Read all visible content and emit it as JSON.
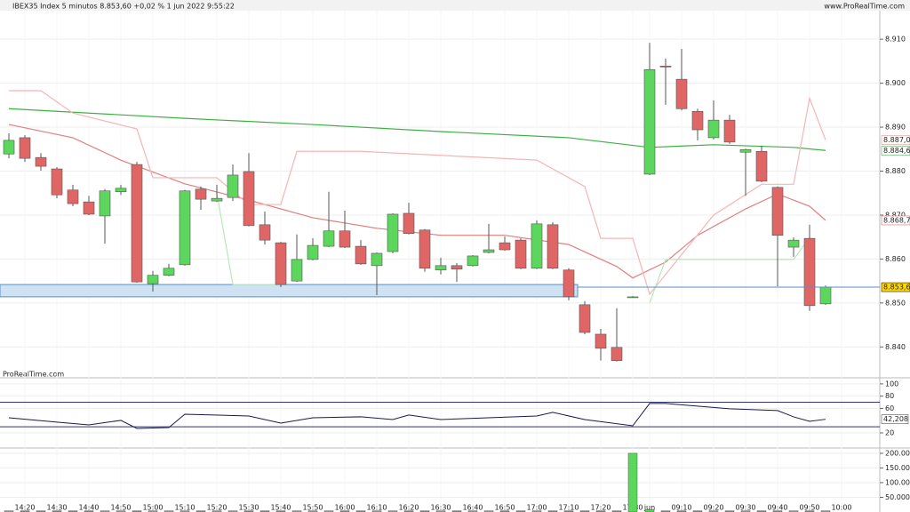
{
  "chart_data": [
    {
      "type": "candlestick",
      "title": "IBEX35 Index 5 minutos 8.853,60 +0,02 % 1 jun 2022 9:55:22",
      "source": "www.ProRealTime.com",
      "watermark": "ProRealTime.com",
      "open": [
        8883.9,
        8887.6,
        8883.1,
        8880.5,
        8875.7,
        8873.0,
        8869.8,
        8875.3,
        8881.5,
        8854.4,
        8856.3,
        8858.7,
        8875.9,
        8873.2,
        8874.0,
        8879.9,
        8867.8,
        8863.7,
        8855.0,
        8859.9,
        8862.9,
        8866.4,
        8862.9,
        8858.5,
        8861.7,
        8870.4,
        8866.6,
        8857.5,
        8858.5,
        8858.5,
        8861.5,
        8863.7,
        8864.3,
        8857.9,
        8867.8,
        8857.5,
        8849.6,
        8842.9,
        8839.9,
        8851.4,
        8879.3,
        8903.9,
        8900.9,
        8893.6,
        8887.6,
        8891.6,
        8884.3,
        8884.5,
        8876.3,
        8862.7,
        8864.7,
        8849.8
      ],
      "high": [
        8888.6,
        8888.2,
        8884.1,
        8880.9,
        8876.9,
        8874.4,
        8875.9,
        8876.9,
        8882.1,
        8857.3,
        8858.9,
        8875.7,
        8876.5,
        8876.9,
        8881.5,
        8884.1,
        8870.8,
        8863.9,
        8865.6,
        8864.7,
        8875.3,
        8871.0,
        8864.3,
        8861.5,
        8870.4,
        8872.8,
        8866.8,
        8860.3,
        8859.1,
        8860.9,
        8868.0,
        8865.1,
        8864.7,
        8868.8,
        8868.4,
        8857.9,
        8850.4,
        8844.1,
        8848.8,
        8851.6,
        8909.2,
        8905.6,
        8907.8,
        8894.2,
        8896.1,
        8892.8,
        8885.1,
        8885.8,
        8876.5,
        8864.9,
        8867.8,
        8854.0
      ],
      "low": [
        8882.9,
        8882.1,
        8880.1,
        8873.8,
        8872.0,
        8870.0,
        8863.5,
        8874.6,
        8854.6,
        8852.6,
        8856.1,
        8858.5,
        8871.2,
        8873.0,
        8873.2,
        8867.4,
        8863.3,
        8853.6,
        8854.8,
        8859.7,
        8862.7,
        8862.5,
        8858.7,
        8851.8,
        8861.3,
        8865.6,
        8857.1,
        8856.5,
        8854.8,
        8858.3,
        8861.3,
        8861.9,
        8857.7,
        8857.7,
        8857.7,
        8850.6,
        8842.9,
        8836.9,
        8836.7,
        8851.2,
        8879.1,
        8895.1,
        8893.8,
        8887.0,
        8887.2,
        8886.2,
        8874.4,
        8877.5,
        8853.8,
        8860.5,
        8848.2,
        8849.6
      ],
      "close": [
        8887.0,
        8882.9,
        8881.1,
        8874.6,
        8872.6,
        8870.2,
        8875.5,
        8876.1,
        8854.8,
        8856.3,
        8857.9,
        8875.5,
        8873.6,
        8873.8,
        8879.1,
        8867.6,
        8864.3,
        8854.2,
        8859.9,
        8863.1,
        8866.4,
        8862.7,
        8858.9,
        8861.3,
        8870.2,
        8865.8,
        8857.9,
        8858.5,
        8857.7,
        8860.7,
        8862.1,
        8862.1,
        8857.9,
        8868.0,
        8857.9,
        8851.4,
        8843.3,
        8839.7,
        8836.9,
        8851.4,
        8903.1,
        8903.7,
        8894.2,
        8889.4,
        8891.6,
        8886.6,
        8884.9,
        8877.7,
        8865.4,
        8864.3,
        8849.4,
        8853.6
      ],
      "up_color": "#5cd65c",
      "down_color": "#e06666",
      "overlays": [
        {
          "color": "#3cb043",
          "x": [
            0,
            3,
            11,
            19,
            27,
            35,
            40,
            44,
            49,
            51
          ],
          "values": [
            8894.2,
            8893.6,
            8892.0,
            8890.6,
            8889.0,
            8887.6,
            8885.4,
            8886.0,
            8885.4,
            8884.7
          ]
        },
        {
          "color": "#e07f7f",
          "x": [
            0,
            4,
            7,
            11,
            15,
            19,
            23,
            27,
            31,
            35,
            38,
            39,
            41,
            43,
            46,
            48,
            50,
            51
          ],
          "values": [
            8890.6,
            8887.6,
            8882.5,
            8877.1,
            8873.4,
            8869.4,
            8867.0,
            8865.4,
            8865.4,
            8863.3,
            8858.3,
            8855.7,
            8859.3,
            8865.4,
            8871.4,
            8874.8,
            8872.0,
            8868.8
          ]
        },
        {
          "color": "#f5b5b5",
          "x": [
            0,
            2,
            4,
            8,
            9,
            13,
            15,
            17,
            18,
            22,
            33,
            36,
            37,
            39,
            40,
            44,
            47,
            49,
            50,
            51
          ],
          "values": [
            8898.3,
            8898.3,
            8893.2,
            8889.6,
            8878.5,
            8878.5,
            8872.4,
            8872.4,
            8884.5,
            8884.5,
            8882.5,
            8876.5,
            8864.7,
            8864.7,
            8852.0,
            8870.0,
            8877.0,
            8877.0,
            8896.6,
            8887.1
          ]
        },
        {
          "color": "#b8e8b8",
          "x": [
            13,
            14,
            17,
            18,
            40,
            41,
            49,
            50
          ],
          "values": [
            8875.0,
            8854.2,
            8854.2,
            null,
            8850.0,
            8859.9,
            8859.9,
            8864.9
          ]
        }
      ],
      "zone": [
        8851.4,
        8854.2
      ],
      "price_labels": [
        {
          "value": 8887.05,
          "label": "8.887,05",
          "color": "#e08080"
        },
        {
          "value": 8884.64,
          "label": "8.884,64",
          "color": "#2e9e3e"
        },
        {
          "value": 8868.78,
          "label": "8.868,78",
          "color": "#d05050"
        },
        {
          "value": 8853.6,
          "label": "8.853,60",
          "color": "#000000"
        }
      ],
      "ylim": [
        8834.4,
        8916.5
      ],
      "yticks": [
        {
          "value": 8840,
          "label": "8.840"
        },
        {
          "value": 8850,
          "label": "8.850"
        },
        {
          "value": 8860,
          "label": "8.860"
        },
        {
          "value": 8870,
          "label": "8.870"
        },
        {
          "value": 8880,
          "label": "8.880"
        },
        {
          "value": 8890,
          "label": "8.890"
        },
        {
          "value": 8900,
          "label": "8.900"
        },
        {
          "value": 8910,
          "label": "8.910"
        }
      ],
      "xticks": [
        {
          "value": 1,
          "label": "14:20"
        },
        {
          "value": 3,
          "label": "14:30"
        },
        {
          "value": 5,
          "label": "14:40"
        },
        {
          "value": 7,
          "label": "14:50"
        },
        {
          "value": 9,
          "label": "15:00"
        },
        {
          "value": 11,
          "label": "15:10"
        },
        {
          "value": 13,
          "label": "15:20"
        },
        {
          "value": 15,
          "label": "15:30"
        },
        {
          "value": 17,
          "label": "15:40"
        },
        {
          "value": 19,
          "label": "15:50"
        },
        {
          "value": 21,
          "label": "16:00"
        },
        {
          "value": 23,
          "label": "16:10"
        },
        {
          "value": 25,
          "label": "16:20"
        },
        {
          "value": 27,
          "label": "16:30"
        },
        {
          "value": 29,
          "label": "16:40"
        },
        {
          "value": 31,
          "label": "16:50"
        },
        {
          "value": 33,
          "label": "17:00"
        },
        {
          "value": 35,
          "label": "17:10"
        },
        {
          "value": 37,
          "label": "17:20"
        },
        {
          "value": 39,
          "label": "17:30"
        },
        {
          "value": 40,
          "label": "jun"
        },
        {
          "value": 42,
          "label": "09:10"
        },
        {
          "value": 44,
          "label": "09:20"
        },
        {
          "value": 46,
          "label": "09:30"
        },
        {
          "value": 48,
          "label": "09:40"
        },
        {
          "value": 50,
          "label": "09:50"
        },
        {
          "value": 52,
          "label": "10:00"
        }
      ]
    },
    {
      "type": "line",
      "color": "#1a1a4a",
      "x": [
        0,
        3,
        5,
        7,
        8,
        10,
        11,
        15,
        17,
        19,
        22,
        24,
        25,
        27,
        33,
        34,
        36,
        39,
        40,
        41,
        45,
        48,
        49,
        50,
        51
      ],
      "values": [
        44.7,
        37.5,
        33.1,
        40.4,
        27.3,
        28.7,
        50.5,
        47.6,
        36.0,
        44.7,
        46.2,
        41.8,
        49.1,
        41.8,
        47.6,
        53.5,
        41.8,
        31.6,
        68.0,
        68.0,
        59.3,
        56.4,
        46.2,
        38.9,
        42.208
      ],
      "last_label": {
        "value": 42.208,
        "label": "42,208"
      },
      "levels": [
        70,
        30
      ],
      "ylim": [
        4,
        110
      ],
      "yticks": [
        20,
        60,
        80,
        100
      ]
    },
    {
      "type": "bar",
      "values": [
        4000,
        4000,
        4000,
        4000,
        4000,
        4000,
        4000,
        4000,
        4000,
        4000,
        4000,
        4000,
        4000,
        4000,
        4000,
        4000,
        4000,
        4000,
        4000,
        4000,
        4000,
        4000,
        4000,
        4000,
        4000,
        4000,
        4000,
        4000,
        4000,
        4000,
        4000,
        4000,
        4000,
        4000,
        4000,
        4000,
        4000,
        4000,
        4000,
        200000,
        8000,
        4000,
        4000,
        4000,
        4000,
        4000,
        4000,
        4000,
        4000,
        4000,
        4000,
        4000
      ],
      "up_color": "#5cd65c",
      "down_color": "#e06666",
      "ylim": [
        0,
        218000
      ],
      "yticks": [
        {
          "value": 50000,
          "label": "50.000"
        },
        {
          "value": 100000,
          "label": "100.000"
        },
        {
          "value": 150000,
          "label": "150.000"
        },
        {
          "value": 200000,
          "label": "200.000"
        }
      ]
    }
  ]
}
